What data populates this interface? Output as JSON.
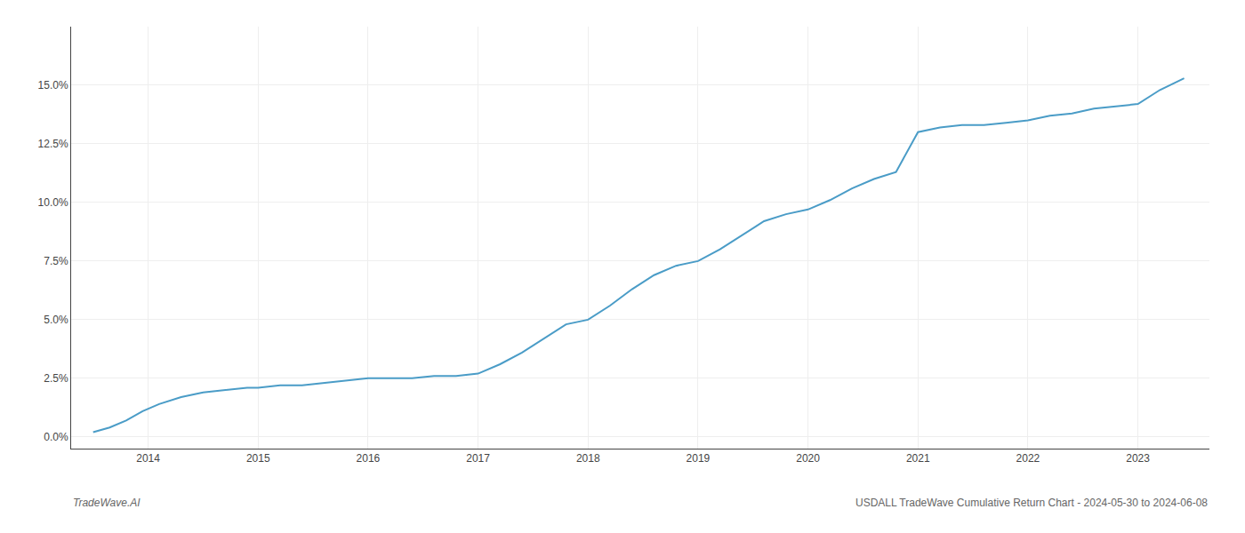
{
  "chart_data": {
    "type": "line",
    "annotations": [
      "TradeWave.AI",
      "USDALL TradeWave Cumulative Return Chart - 2024-05-30 to 2024-06-08"
    ],
    "color": "#4a9cc7",
    "grid": true,
    "x": [
      2013.5,
      2013.65,
      2013.8,
      2013.95,
      2014.1,
      2014.3,
      2014.5,
      2014.7,
      2014.9,
      2015.0,
      2015.2,
      2015.4,
      2015.6,
      2015.8,
      2016.0,
      2016.2,
      2016.4,
      2016.6,
      2016.8,
      2017.0,
      2017.2,
      2017.4,
      2017.6,
      2017.8,
      2018.0,
      2018.2,
      2018.4,
      2018.6,
      2018.8,
      2019.0,
      2019.2,
      2019.4,
      2019.6,
      2019.8,
      2020.0,
      2020.2,
      2020.4,
      2020.6,
      2020.8,
      2021.0,
      2021.2,
      2021.4,
      2021.6,
      2021.8,
      2022.0,
      2022.2,
      2022.4,
      2022.6,
      2022.8,
      2023.0,
      2023.2,
      2023.42
    ],
    "values": [
      0.002,
      0.004,
      0.007,
      0.011,
      0.014,
      0.017,
      0.019,
      0.02,
      0.021,
      0.021,
      0.022,
      0.022,
      0.023,
      0.024,
      0.025,
      0.025,
      0.025,
      0.026,
      0.026,
      0.027,
      0.031,
      0.036,
      0.042,
      0.048,
      0.05,
      0.056,
      0.063,
      0.069,
      0.073,
      0.075,
      0.08,
      0.086,
      0.092,
      0.095,
      0.097,
      0.101,
      0.106,
      0.11,
      0.113,
      0.13,
      0.132,
      0.133,
      0.133,
      0.134,
      0.135,
      0.137,
      0.138,
      0.14,
      0.141,
      0.142,
      0.148,
      0.153
    ],
    "xlim": [
      2013.3,
      2023.65
    ],
    "ylim": [
      -0.005,
      0.175
    ],
    "xticks": [
      2014,
      2015,
      2016,
      2017,
      2018,
      2019,
      2020,
      2021,
      2022,
      2023
    ],
    "yticks": [
      {
        "value": 0.0,
        "label": "0.0%"
      },
      {
        "value": 0.025,
        "label": "2.5%"
      },
      {
        "value": 0.05,
        "label": "5.0%"
      },
      {
        "value": 0.075,
        "label": "7.5%"
      },
      {
        "value": 0.1,
        "label": "10.0%"
      },
      {
        "value": 0.125,
        "label": "12.5%"
      },
      {
        "value": 0.15,
        "label": "15.0%"
      }
    ]
  }
}
